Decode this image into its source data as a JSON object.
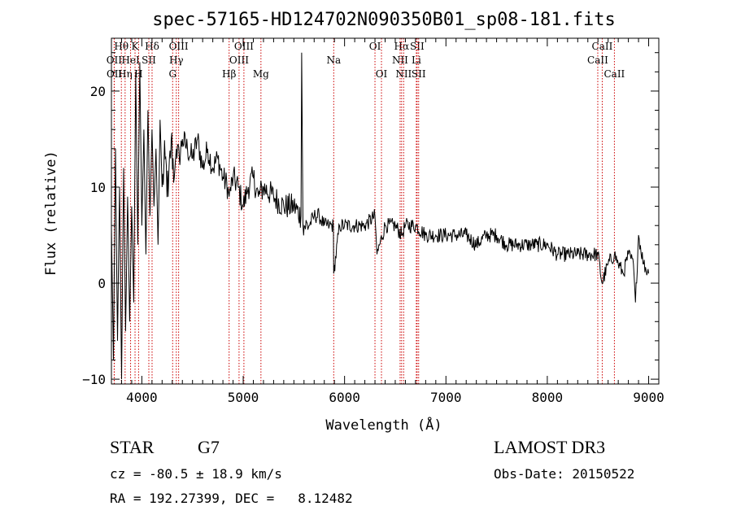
{
  "chart_data": {
    "type": "line",
    "title": "spec-57165-HD124702N090350B01_sp08-181.fits",
    "xlabel": "Wavelength (Å)",
    "ylabel": "Flux (relative)",
    "xlim": [
      3700,
      9100
    ],
    "ylim": [
      -10.5,
      25.5
    ],
    "xticks": [
      4000,
      5000,
      6000,
      7000,
      8000,
      9000
    ],
    "yticks": [
      -10,
      0,
      10,
      20
    ],
    "grid": false,
    "series": [
      {
        "name": "spectrum",
        "color": "#000000",
        "x": [
          3700,
          3720,
          3740,
          3760,
          3780,
          3800,
          3820,
          3840,
          3860,
          3880,
          3900,
          3920,
          3940,
          3960,
          3980,
          4000,
          4020,
          4040,
          4060,
          4080,
          4100,
          4120,
          4140,
          4160,
          4180,
          4200,
          4230,
          4260,
          4290,
          4320,
          4340,
          4370,
          4400,
          4450,
          4500,
          4550,
          4600,
          4650,
          4700,
          4750,
          4800,
          4850,
          4861,
          4900,
          4950,
          5000,
          5050,
          5100,
          5150,
          5200,
          5300,
          5400,
          5500,
          5570,
          5577,
          5590,
          5650,
          5700,
          5750,
          5800,
          5850,
          5890,
          5893,
          5950,
          6000,
          6100,
          6200,
          6300,
          6320,
          6400,
          6500,
          6563,
          6600,
          6700,
          6800,
          6900,
          7000,
          7100,
          7200,
          7300,
          7400,
          7500,
          7600,
          7700,
          7800,
          7900,
          8000,
          8100,
          8200,
          8300,
          8400,
          8500,
          8540,
          8600,
          8662,
          8700,
          8750,
          8800,
          8850,
          8870,
          8900,
          8950,
          9000
        ],
        "values": [
          6,
          -8,
          14,
          -6,
          10,
          -10,
          12,
          -5,
          9,
          -4,
          8,
          -2,
          22,
          4,
          23,
          6,
          16,
          3,
          18,
          7,
          16,
          8,
          14,
          4,
          17,
          10,
          13,
          9,
          15,
          11,
          14,
          13,
          15,
          14,
          13,
          15,
          12,
          14,
          12,
          13,
          11,
          10,
          9,
          11,
          10,
          8,
          10,
          11,
          9,
          10,
          9,
          8,
          8,
          7,
          24,
          6,
          6,
          7,
          7,
          6,
          6,
          6,
          1,
          6,
          6,
          6,
          6,
          7,
          3,
          6,
          6,
          5,
          6,
          6,
          5,
          5,
          5,
          5,
          5,
          4,
          5,
          5,
          4,
          4,
          4,
          4,
          4,
          3,
          3,
          3,
          3,
          3,
          0,
          2,
          3,
          2,
          1,
          3,
          2,
          -2,
          5,
          2,
          1
        ]
      }
    ],
    "lines": [
      {
        "label": "Hθ",
        "x": 3798,
        "row": 1
      },
      {
        "label": "OII",
        "x": 3727,
        "row": 2
      },
      {
        "label": "OII",
        "x": 3729,
        "row": 3
      },
      {
        "label": "Hη",
        "x": 3835,
        "row": 3
      },
      {
        "label": "K",
        "x": 3933,
        "row": 1
      },
      {
        "label": "HeI",
        "x": 3889,
        "row": 2
      },
      {
        "label": "H",
        "x": 3968,
        "row": 3
      },
      {
        "label": "SII",
        "x": 4069,
        "row": 2
      },
      {
        "label": "Hδ",
        "x": 4101,
        "row": 1
      },
      {
        "label": "OIII",
        "x": 4363,
        "row": 1
      },
      {
        "label": "Hγ",
        "x": 4340,
        "row": 2
      },
      {
        "label": "G",
        "x": 4304,
        "row": 3
      },
      {
        "label": "Hβ",
        "x": 4861,
        "row": 3
      },
      {
        "label": "OIII",
        "x": 5007,
        "row": 1
      },
      {
        "label": "OIII",
        "x": 4959,
        "row": 2
      },
      {
        "label": "Mg",
        "x": 5175,
        "row": 3
      },
      {
        "label": "Na",
        "x": 5893,
        "row": 2
      },
      {
        "label": "OI",
        "x": 6300,
        "row": 1
      },
      {
        "label": "OI",
        "x": 6364,
        "row": 3
      },
      {
        "label": "Hα",
        "x": 6563,
        "row": 1
      },
      {
        "label": "NII",
        "x": 6548,
        "row": 2
      },
      {
        "label": "NII",
        "x": 6583,
        "row": 3
      },
      {
        "label": "SII",
        "x": 6716,
        "row": 1
      },
      {
        "label": "Li",
        "x": 6708,
        "row": 2
      },
      {
        "label": "SII",
        "x": 6731,
        "row": 3
      },
      {
        "label": "CaII",
        "x": 8542,
        "row": 1
      },
      {
        "label": "CaII",
        "x": 8498,
        "row": 2
      },
      {
        "label": "CaII",
        "x": 8662,
        "row": 3
      }
    ]
  },
  "info": {
    "object_class": "STAR",
    "subclass": "G7",
    "survey": "LAMOST DR3",
    "redshift": "cz = -80.5 ± 18.9 km/s",
    "obs_date": "Obs-Date: 20150522",
    "coords": "RA = 192.27399, DEC =   8.12482"
  }
}
